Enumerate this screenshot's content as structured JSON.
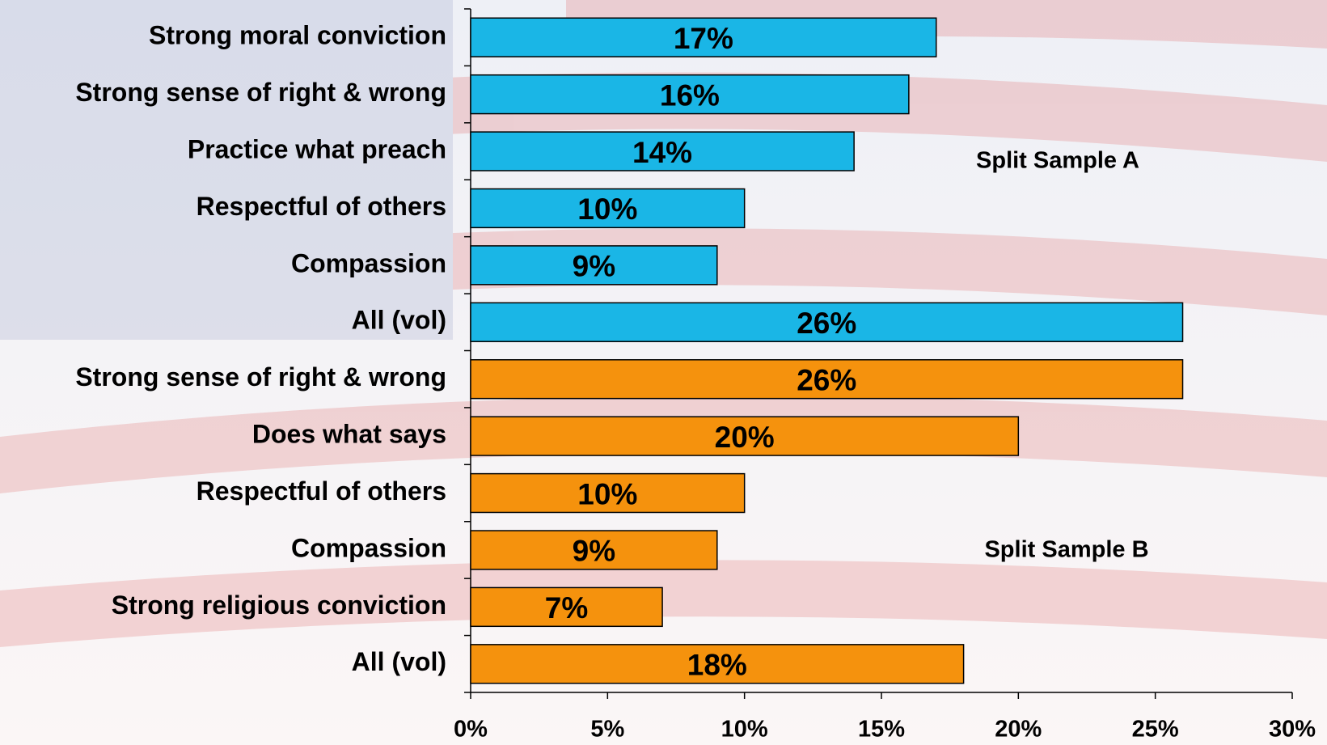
{
  "chart_data": {
    "type": "bar",
    "orientation": "horizontal",
    "groups": [
      {
        "label": "Split Sample A",
        "color": "#1ab6e6",
        "categories": [
          "Strong moral conviction",
          "Strong sense of right & wrong",
          "Practice what preach",
          "Respectful of others",
          "Compassion",
          "All (vol)"
        ],
        "values": [
          17,
          16,
          14,
          10,
          9,
          26
        ],
        "value_labels": [
          "17%",
          "16%",
          "14%",
          "10%",
          "9%",
          "26%"
        ]
      },
      {
        "label": "Split Sample B",
        "color": "#f5920d",
        "categories": [
          "Strong sense of right & wrong",
          "Does what says",
          "Respectful of others",
          "Compassion",
          "Strong religious conviction",
          "All (vol)"
        ],
        "values": [
          26,
          20,
          10,
          9,
          7,
          18
        ],
        "value_labels": [
          "26%",
          "20%",
          "10%",
          "9%",
          "7%",
          "18%"
        ]
      }
    ],
    "xlim": [
      0,
      30
    ],
    "xticks": [
      {
        "value": 0,
        "label": "0%"
      },
      {
        "value": 5,
        "label": "5%"
      },
      {
        "value": 10,
        "label": "10%"
      },
      {
        "value": 15,
        "label": "15%"
      },
      {
        "value": 20,
        "label": "20%"
      },
      {
        "value": 25,
        "label": "25%"
      },
      {
        "value": 30,
        "label": "30%"
      }
    ]
  }
}
